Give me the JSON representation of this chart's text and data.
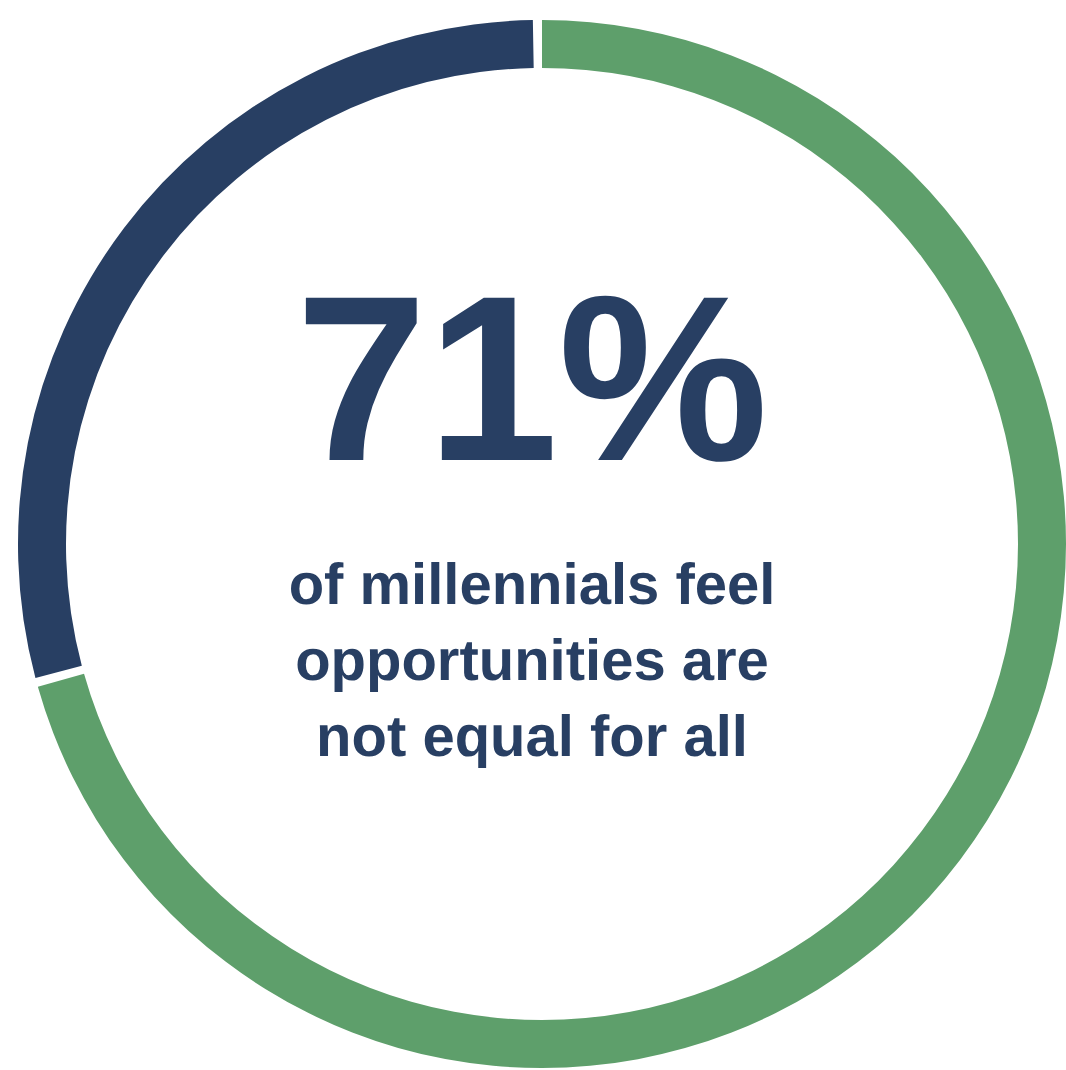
{
  "chart_data": {
    "type": "donut",
    "categories": [
      null,
      null
    ],
    "values": [
      71,
      29
    ],
    "colors": [
      "#5e9f6b",
      "#283f63"
    ],
    "value_labels": [
      "71%",
      null
    ],
    "annotations": [
      "of millennials feel opportunities are not equal for all"
    ]
  }
}
